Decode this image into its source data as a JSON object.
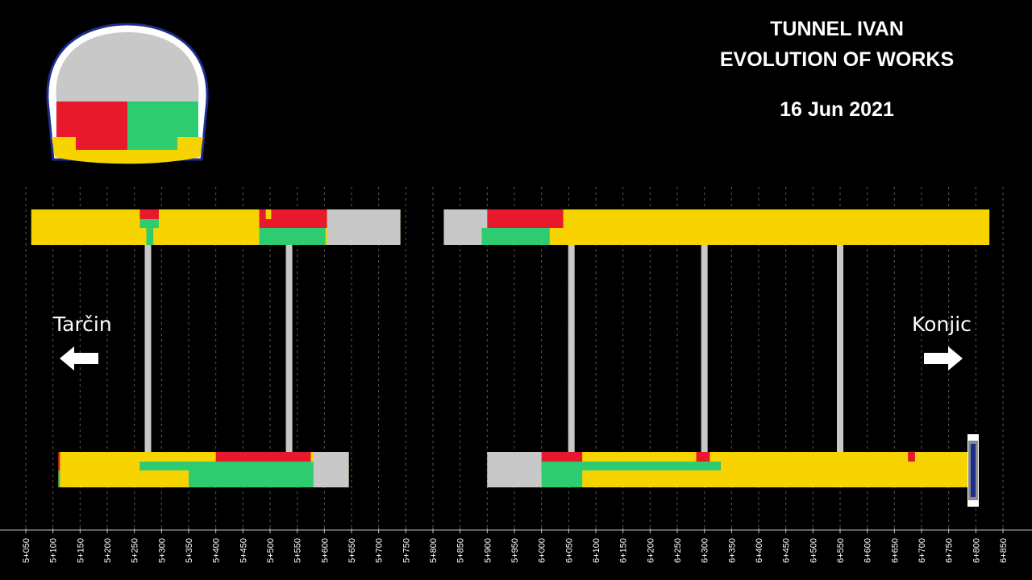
{
  "header": {
    "line1": "TUNNEL IVAN",
    "line2": "EVOLUTION OF WORKS",
    "date": "16 Jun 2021"
  },
  "directions": {
    "left": "Tarčin",
    "right": "Konjic"
  },
  "colors": {
    "background": "#000000",
    "not_excavated": "#c8c8c8",
    "top_heading": "#e8192c",
    "bench": "#2ecc71",
    "invert_lining": "#f7d400",
    "portal": "#1b2d8f",
    "grid": "#5a5a5a"
  },
  "legend_section": {
    "parts": [
      "crown",
      "top-heading-left",
      "top-heading-right",
      "invert"
    ]
  },
  "chart_data": {
    "type": "chainage-progress",
    "axis": {
      "unit": "chainage",
      "min": 5050,
      "max": 6850,
      "step": 50,
      "tick_labels": [
        "5+050",
        "5+100",
        "5+150",
        "5+200",
        "5+250",
        "5+300",
        "5+350",
        "5+400",
        "5+450",
        "5+500",
        "5+550",
        "5+600",
        "5+650",
        "5+700",
        "5+750",
        "5+800",
        "5+850",
        "5+900",
        "5+950",
        "6+000",
        "6+050",
        "6+100",
        "6+150",
        "6+200",
        "6+250",
        "6+300",
        "6+350",
        "6+400",
        "6+450",
        "6+500",
        "6+550",
        "6+600",
        "6+650",
        "6+700",
        "6+750",
        "6+800",
        "6+850"
      ]
    },
    "tubes": [
      {
        "name": "upper-tube",
        "extent": [
          [
            5060,
            5740
          ],
          [
            5820,
            6825
          ]
        ],
        "segments": [
          {
            "from": 5060,
            "to": 5740,
            "band": "full",
            "fill": "invert_lining"
          },
          {
            "from": 5260,
            "to": 5295,
            "band": "top",
            "fill": "top_heading"
          },
          {
            "from": 5260,
            "to": 5295,
            "band": "mid",
            "fill": "bench"
          },
          {
            "from": 5272,
            "to": 5285,
            "band": "bot",
            "fill": "bench"
          },
          {
            "from": 5480,
            "to": 5605,
            "band": "top",
            "fill": "top_heading"
          },
          {
            "from": 5480,
            "to": 5605,
            "band": "mid",
            "fill": "top_heading"
          },
          {
            "from": 5492,
            "to": 5502,
            "band": "top",
            "fill": "invert_lining"
          },
          {
            "from": 5480,
            "to": 5602,
            "band": "bot",
            "fill": "bench"
          },
          {
            "from": 5605,
            "to": 5740,
            "band": "full",
            "fill": "not_excavated"
          },
          {
            "from": 5820,
            "to": 6825,
            "band": "full",
            "fill": "invert_lining"
          },
          {
            "from": 5820,
            "to": 5900,
            "band": "full",
            "fill": "not_excavated"
          },
          {
            "from": 5900,
            "to": 6040,
            "band": "top",
            "fill": "top_heading"
          },
          {
            "from": 5900,
            "to": 6040,
            "band": "mid",
            "fill": "top_heading"
          },
          {
            "from": 5890,
            "to": 5900,
            "band": "bot",
            "fill": "bench"
          },
          {
            "from": 5890,
            "to": 6015,
            "band": "bot",
            "fill": "bench"
          }
        ]
      },
      {
        "name": "lower-tube",
        "extent": [
          [
            5110,
            5645
          ],
          [
            5900,
            6785
          ]
        ],
        "segments": [
          {
            "from": 5110,
            "to": 5645,
            "band": "full",
            "fill": "invert_lining"
          },
          {
            "from": 5110,
            "to": 5113,
            "band": "full",
            "fill": "top_heading"
          },
          {
            "from": 5110,
            "to": 5113,
            "band": "bot",
            "fill": "bench"
          },
          {
            "from": 5400,
            "to": 5575,
            "band": "top",
            "fill": "top_heading"
          },
          {
            "from": 5260,
            "to": 5575,
            "band": "mid",
            "fill": "top_heading"
          },
          {
            "from": 5260,
            "to": 5580,
            "band": "lo",
            "fill": "bench"
          },
          {
            "from": 5350,
            "to": 5580,
            "band": "bot",
            "fill": "bench"
          },
          {
            "from": 5580,
            "to": 5645,
            "band": "full",
            "fill": "not_excavated"
          },
          {
            "from": 5900,
            "to": 6785,
            "band": "full",
            "fill": "invert_lining"
          },
          {
            "from": 5900,
            "to": 6000,
            "band": "full",
            "fill": "not_excavated"
          },
          {
            "from": 6000,
            "to": 6075,
            "band": "top",
            "fill": "top_heading"
          },
          {
            "from": 6000,
            "to": 6330,
            "band": "mid",
            "fill": "top_heading"
          },
          {
            "from": 6285,
            "to": 6310,
            "band": "top",
            "fill": "top_heading"
          },
          {
            "from": 6000,
            "to": 6330,
            "band": "lo",
            "fill": "bench"
          },
          {
            "from": 6000,
            "to": 6075,
            "band": "bot",
            "fill": "bench"
          },
          {
            "from": 6675,
            "to": 6688,
            "band": "top",
            "fill": "top_heading"
          }
        ]
      }
    ],
    "cross_passages": [
      5275,
      5535,
      6055,
      6300,
      6550
    ],
    "portal_marker": 6795
  }
}
